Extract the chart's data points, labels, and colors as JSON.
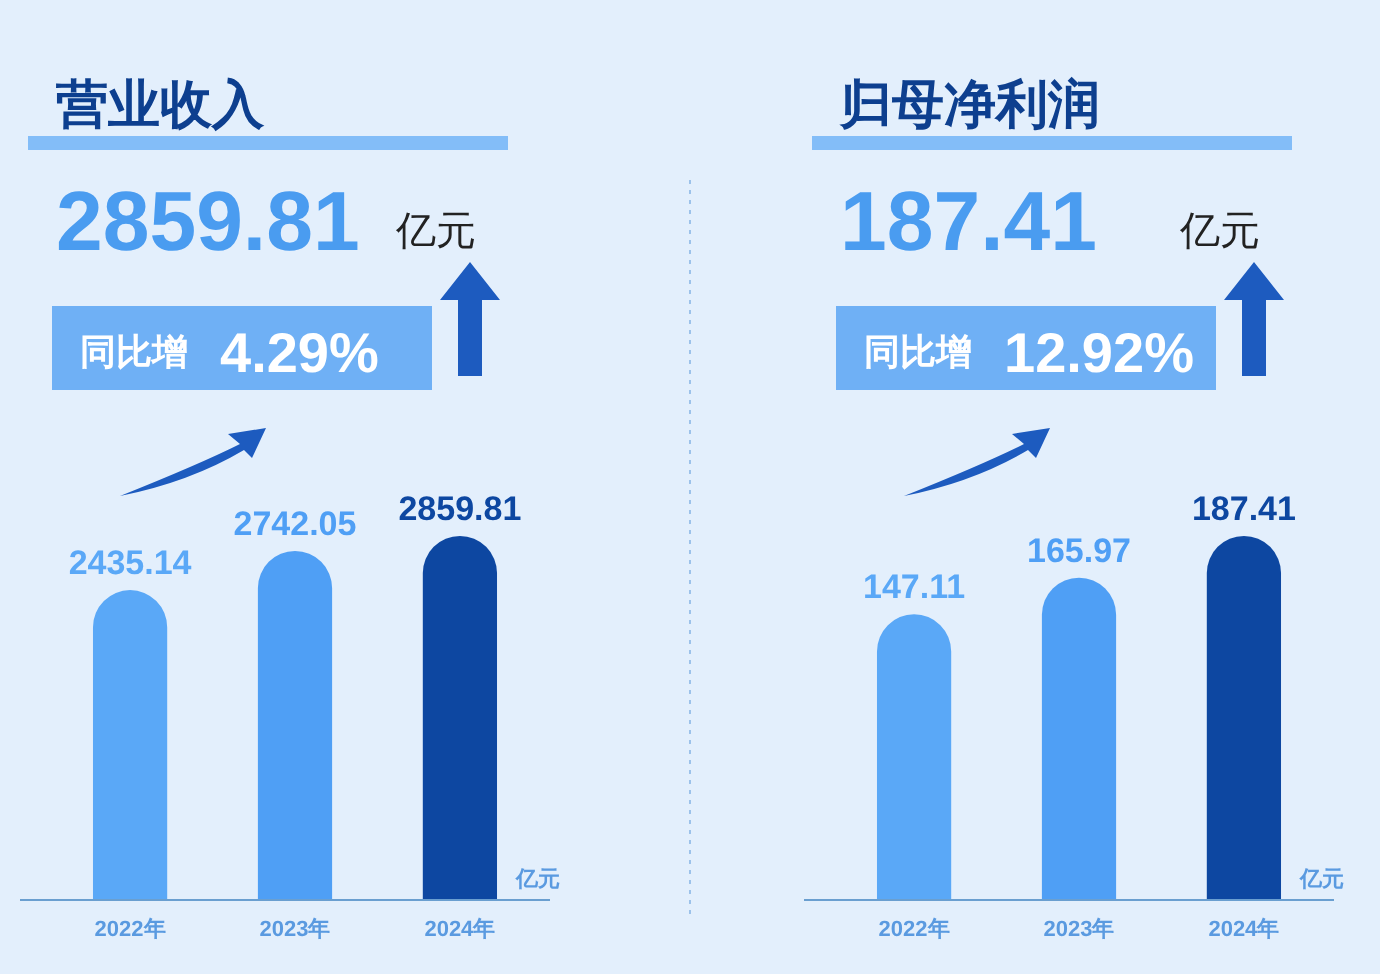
{
  "chart_data": [
    {
      "type": "bar",
      "title": "营业收入",
      "annotations": [
        "2859.81",
        "亿元",
        "同比增",
        "4.29%"
      ],
      "ylabel": "亿元",
      "categories": [
        "2022年",
        "2023年",
        "2024年"
      ],
      "data_labels": true,
      "series": [
        {
          "colors": [
            "#5aa8f7",
            "#4f9ff5",
            "#0d47a1"
          ],
          "values": [
            2435.14,
            2742.05,
            2859.81
          ]
        }
      ]
    },
    {
      "type": "bar",
      "title": "归母净利润",
      "annotations": [
        "187.41",
        "亿元",
        "同比增",
        "12.92%"
      ],
      "ylabel": "亿元",
      "categories": [
        "2022年",
        "2023年",
        "2024年"
      ],
      "data_labels": true,
      "series": [
        {
          "colors": [
            "#5aa8f7",
            "#4f9ff5",
            "#0d47a1"
          ],
          "values": [
            147.11,
            165.97,
            187.41
          ]
        }
      ]
    }
  ]
}
